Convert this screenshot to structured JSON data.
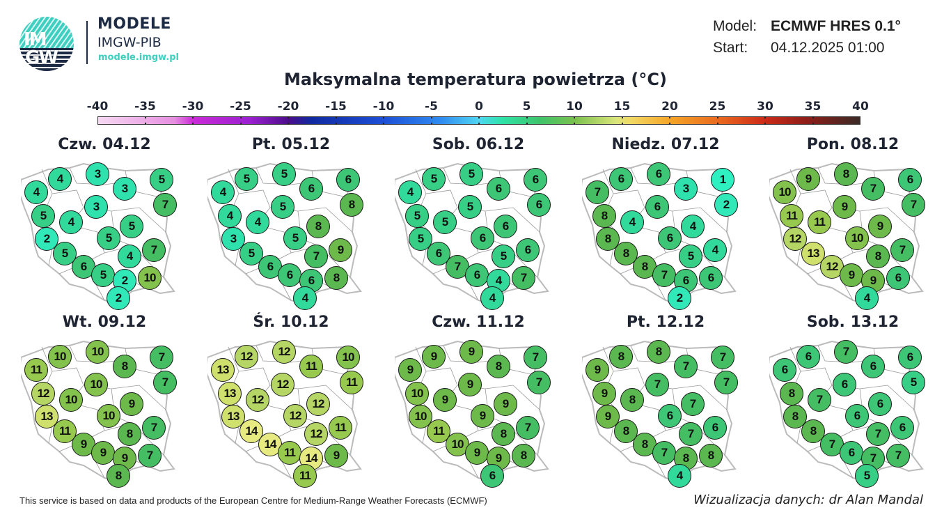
{
  "logo": {
    "mark_top": "IM",
    "mark_bottom": "GW",
    "title": "MODELE",
    "subtitle": "IMGW-PIB",
    "url": "modele.imgw.pl"
  },
  "meta": {
    "model_label": "Model:",
    "model_value": "ECMWF HRES 0.1°",
    "start_label": "Start:",
    "start_value": "04.12.2025 01:00"
  },
  "title": "Maksymalna temperatura powietrza (°C)",
  "scale": {
    "labels": [
      "-40",
      "-35",
      "-30",
      "-25",
      "-20",
      "-15",
      "-10",
      "-5",
      "0",
      "5",
      "10",
      "15",
      "20",
      "25",
      "30",
      "35",
      "40"
    ]
  },
  "colors": {
    "t1": "#2ef0c0",
    "t2": "#30e8b8",
    "t3": "#2fe2ad",
    "t4": "#31d99a",
    "t5": "#37cf86",
    "t6": "#3cc676",
    "t7": "#45bd62",
    "t8": "#5bb850",
    "t9": "#6dba4a",
    "t10": "#83c24d",
    "t11": "#98c94f",
    "t12": "#b5d564",
    "t13": "#cfe06d",
    "t14": "#e6ea80"
  },
  "panels": [
    {
      "title": "Czw. 04.12",
      "values": [
        4,
        4,
        3,
        3,
        5,
        7,
        5,
        3,
        4,
        5,
        2,
        5,
        7,
        5,
        4,
        6,
        5,
        2,
        10,
        2
      ]
    },
    {
      "title": "Pt. 05.12",
      "values": [
        4,
        5,
        5,
        6,
        6,
        8,
        4,
        5,
        4,
        8,
        3,
        5,
        9,
        5,
        7,
        6,
        6,
        6,
        8,
        4
      ]
    },
    {
      "title": "Sob. 06.12",
      "values": [
        4,
        5,
        5,
        6,
        6,
        6,
        5,
        5,
        5,
        6,
        5,
        6,
        6,
        6,
        5,
        7,
        6,
        4,
        7,
        4
      ]
    },
    {
      "title": "Niedz. 07.12",
      "values": [
        7,
        6,
        6,
        3,
        1,
        2,
        8,
        6,
        4,
        4,
        8,
        6,
        4,
        8,
        5,
        8,
        7,
        6,
        6,
        2
      ]
    },
    {
      "title": "Pon. 08.12",
      "values": [
        10,
        9,
        8,
        7,
        6,
        7,
        11,
        9,
        11,
        9,
        12,
        10,
        7,
        13,
        8,
        12,
        9,
        9,
        6,
        4
      ]
    },
    {
      "title": "Wt. 09.12",
      "values": [
        11,
        10,
        10,
        8,
        7,
        7,
        12,
        10,
        10,
        9,
        13,
        10,
        7,
        11,
        8,
        9,
        9,
        9,
        7,
        8
      ]
    },
    {
      "title": "Śr. 10.12",
      "values": [
        13,
        12,
        12,
        11,
        10,
        11,
        13,
        12,
        12,
        12,
        13,
        12,
        11,
        14,
        12,
        14,
        11,
        14,
        9,
        11
      ]
    },
    {
      "title": "Czw. 11.12",
      "values": [
        9,
        9,
        9,
        8,
        7,
        7,
        10,
        9,
        9,
        9,
        10,
        9,
        7,
        11,
        8,
        10,
        9,
        9,
        8,
        6
      ]
    },
    {
      "title": "Pt. 12.12",
      "values": [
        9,
        8,
        8,
        7,
        7,
        7,
        9,
        7,
        8,
        7,
        9,
        6,
        6,
        8,
        7,
        8,
        7,
        8,
        8,
        4
      ]
    },
    {
      "title": "Sob. 13.12",
      "values": [
        6,
        6,
        7,
        6,
        6,
        5,
        8,
        6,
        7,
        6,
        8,
        6,
        6,
        8,
        7,
        7,
        6,
        7,
        7,
        5
      ]
    }
  ],
  "footer": {
    "left": "This service is based on data and products of the European Centre for Medium-Range Weather Forecasts (ECMWF)",
    "right": "Wizualizacja danych: dr Alan Mandal"
  }
}
